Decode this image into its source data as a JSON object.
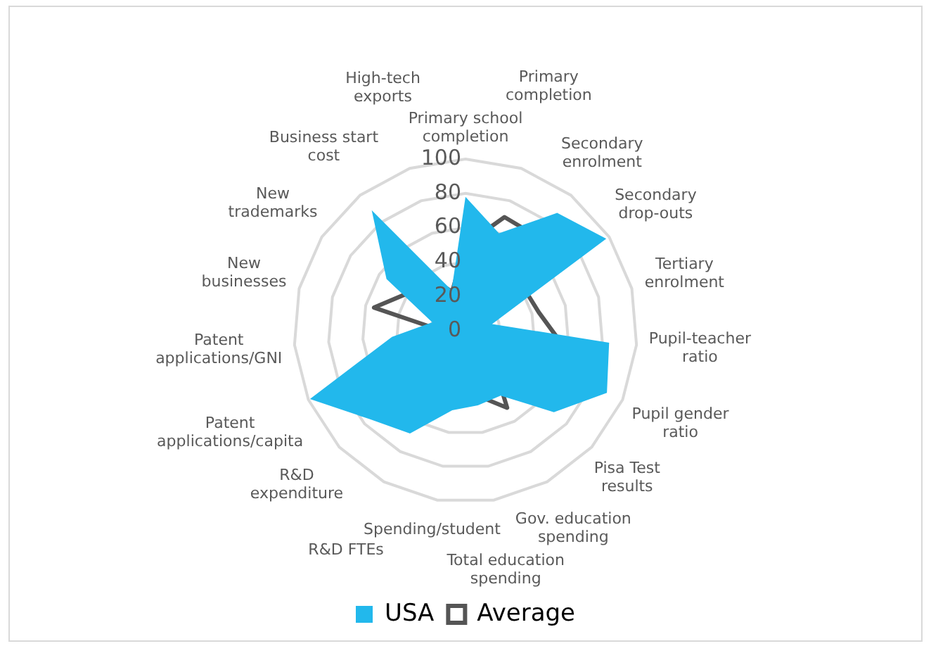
{
  "chart_data": {
    "type": "radar",
    "categories": [
      "Primary school completion",
      "Primary completion",
      "Secondary enrolment",
      "Secondary drop-outs",
      "Tertiary enrolment",
      "Pupil-teacher ratio",
      "Pupil gender ratio",
      "Pisa Test results",
      "Gov. education spending",
      "Total education spending",
      "Spending/student",
      "R&D FTEs",
      "R&D expenditure",
      "Patent applications/capita",
      "Patent applications/GNI",
      "New businesses",
      "New trademarks",
      "Business start cost",
      "High-tech exports"
    ],
    "series": [
      {
        "name": "USA",
        "type": "area",
        "color": "#22b8ec",
        "values": [
          78,
          60,
          87,
          98,
          16,
          84,
          90,
          70,
          43,
          44,
          47,
          68,
          76,
          99,
          43,
          20,
          55,
          89,
          25
        ]
      },
      {
        "name": "Average",
        "color": "#555555",
        "values": [
          50,
          70,
          69,
          42,
          44,
          54,
          82,
          20,
          51,
          38,
          31,
          28,
          14,
          17,
          11,
          55,
          40,
          44,
          24
        ]
      }
    ],
    "ylim": [
      0,
      100
    ],
    "yticks": [
      0,
      20,
      40,
      60,
      80,
      100
    ],
    "grid": true,
    "legend": "bottom",
    "marker": "none",
    "line_style": "solid"
  }
}
